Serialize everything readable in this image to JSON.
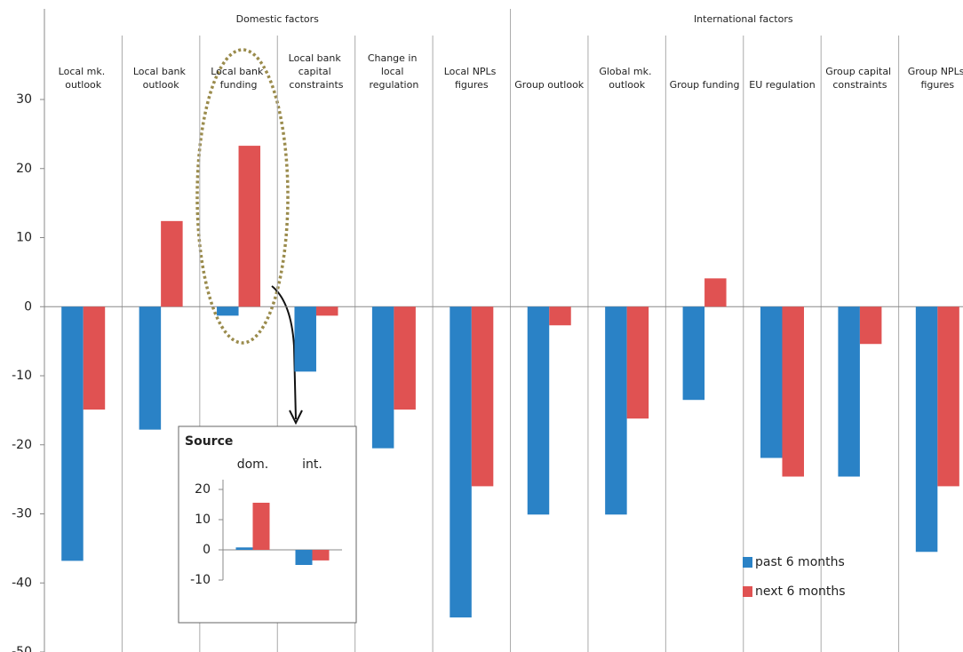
{
  "chart_data": [
    {
      "type": "bar",
      "group_labels": [
        "Domestic factors",
        "International factors"
      ],
      "categories": [
        "Local mk. outlook",
        "Local bank outlook",
        "Local bank funding",
        "Local bank capital constraints",
        "Change in local regulation",
        "Local NPLs figures",
        "Group outlook",
        "Global mk. outlook",
        "Group funding",
        "EU regulation",
        "Group capital constraints",
        "Group NPLs figures"
      ],
      "series": [
        {
          "name": "past 6 months",
          "color": "#2a82c6",
          "values": [
            -36.8,
            -17.8,
            -1.3,
            -9.4,
            -20.5,
            -45,
            -30.1,
            -30.1,
            -13.5,
            -21.9,
            -24.6,
            -35.5
          ]
        },
        {
          "name": "next 6 months",
          "color": "#e05252",
          "values": [
            -14.9,
            12.4,
            23.3,
            -1.3,
            -14.9,
            -26,
            -2.7,
            -16.2,
            4.1,
            -24.6,
            -5.4,
            -26
          ]
        }
      ],
      "ylim": [
        -50,
        30
      ],
      "yticks": [
        -50,
        -40,
        -30,
        -20,
        -10,
        0,
        10,
        20,
        30
      ]
    },
    {
      "type": "bar",
      "title": "Source",
      "categories": [
        "dom.",
        "int."
      ],
      "series": [
        {
          "color": "#2a82c6",
          "values": [
            0.8,
            -5
          ]
        },
        {
          "color": "#e05252",
          "values": [
            15.6,
            -3.5
          ]
        }
      ],
      "ylim": [
        -10,
        20
      ],
      "yticks": [
        -10,
        0,
        10,
        20
      ]
    }
  ]
}
